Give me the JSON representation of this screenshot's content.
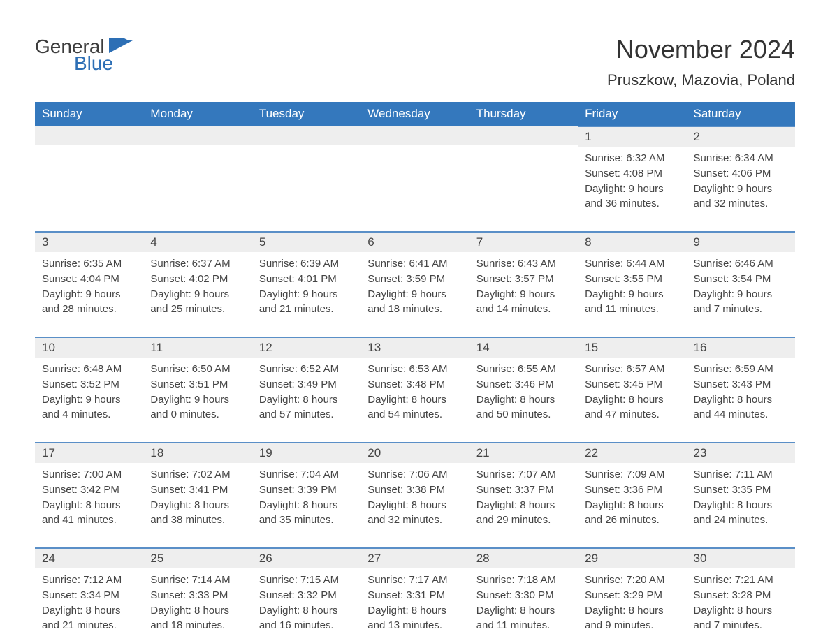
{
  "brand": {
    "general": "General",
    "blue": "Blue",
    "logo_color_general": "#3d3d3d",
    "logo_color_blue": "#2d6fb5",
    "flag_color": "#2d6fb5"
  },
  "header": {
    "month_title": "November 2024",
    "location": "Pruszkow, Mazovia, Poland"
  },
  "theme": {
    "header_bg": "#3478bd",
    "header_text": "#ffffff",
    "day_bar_bg": "#eeeeee",
    "day_bar_border": "#5a8fc7",
    "body_text": "#444444",
    "title_fontsize": 36,
    "location_fontsize": 22,
    "weekday_fontsize": 17,
    "day_number_fontsize": 17,
    "body_fontsize": 15
  },
  "weekdays": [
    "Sunday",
    "Monday",
    "Tuesday",
    "Wednesday",
    "Thursday",
    "Friday",
    "Saturday"
  ],
  "weeks": [
    [
      {
        "empty": true
      },
      {
        "empty": true
      },
      {
        "empty": true
      },
      {
        "empty": true
      },
      {
        "empty": true
      },
      {
        "day": "1",
        "sunrise": "Sunrise: 6:32 AM",
        "sunset": "Sunset: 4:08 PM",
        "daylight1": "Daylight: 9 hours",
        "daylight2": "and 36 minutes."
      },
      {
        "day": "2",
        "sunrise": "Sunrise: 6:34 AM",
        "sunset": "Sunset: 4:06 PM",
        "daylight1": "Daylight: 9 hours",
        "daylight2": "and 32 minutes."
      }
    ],
    [
      {
        "day": "3",
        "sunrise": "Sunrise: 6:35 AM",
        "sunset": "Sunset: 4:04 PM",
        "daylight1": "Daylight: 9 hours",
        "daylight2": "and 28 minutes."
      },
      {
        "day": "4",
        "sunrise": "Sunrise: 6:37 AM",
        "sunset": "Sunset: 4:02 PM",
        "daylight1": "Daylight: 9 hours",
        "daylight2": "and 25 minutes."
      },
      {
        "day": "5",
        "sunrise": "Sunrise: 6:39 AM",
        "sunset": "Sunset: 4:01 PM",
        "daylight1": "Daylight: 9 hours",
        "daylight2": "and 21 minutes."
      },
      {
        "day": "6",
        "sunrise": "Sunrise: 6:41 AM",
        "sunset": "Sunset: 3:59 PM",
        "daylight1": "Daylight: 9 hours",
        "daylight2": "and 18 minutes."
      },
      {
        "day": "7",
        "sunrise": "Sunrise: 6:43 AM",
        "sunset": "Sunset: 3:57 PM",
        "daylight1": "Daylight: 9 hours",
        "daylight2": "and 14 minutes."
      },
      {
        "day": "8",
        "sunrise": "Sunrise: 6:44 AM",
        "sunset": "Sunset: 3:55 PM",
        "daylight1": "Daylight: 9 hours",
        "daylight2": "and 11 minutes."
      },
      {
        "day": "9",
        "sunrise": "Sunrise: 6:46 AM",
        "sunset": "Sunset: 3:54 PM",
        "daylight1": "Daylight: 9 hours",
        "daylight2": "and 7 minutes."
      }
    ],
    [
      {
        "day": "10",
        "sunrise": "Sunrise: 6:48 AM",
        "sunset": "Sunset: 3:52 PM",
        "daylight1": "Daylight: 9 hours",
        "daylight2": "and 4 minutes."
      },
      {
        "day": "11",
        "sunrise": "Sunrise: 6:50 AM",
        "sunset": "Sunset: 3:51 PM",
        "daylight1": "Daylight: 9 hours",
        "daylight2": "and 0 minutes."
      },
      {
        "day": "12",
        "sunrise": "Sunrise: 6:52 AM",
        "sunset": "Sunset: 3:49 PM",
        "daylight1": "Daylight: 8 hours",
        "daylight2": "and 57 minutes."
      },
      {
        "day": "13",
        "sunrise": "Sunrise: 6:53 AM",
        "sunset": "Sunset: 3:48 PM",
        "daylight1": "Daylight: 8 hours",
        "daylight2": "and 54 minutes."
      },
      {
        "day": "14",
        "sunrise": "Sunrise: 6:55 AM",
        "sunset": "Sunset: 3:46 PM",
        "daylight1": "Daylight: 8 hours",
        "daylight2": "and 50 minutes."
      },
      {
        "day": "15",
        "sunrise": "Sunrise: 6:57 AM",
        "sunset": "Sunset: 3:45 PM",
        "daylight1": "Daylight: 8 hours",
        "daylight2": "and 47 minutes."
      },
      {
        "day": "16",
        "sunrise": "Sunrise: 6:59 AM",
        "sunset": "Sunset: 3:43 PM",
        "daylight1": "Daylight: 8 hours",
        "daylight2": "and 44 minutes."
      }
    ],
    [
      {
        "day": "17",
        "sunrise": "Sunrise: 7:00 AM",
        "sunset": "Sunset: 3:42 PM",
        "daylight1": "Daylight: 8 hours",
        "daylight2": "and 41 minutes."
      },
      {
        "day": "18",
        "sunrise": "Sunrise: 7:02 AM",
        "sunset": "Sunset: 3:41 PM",
        "daylight1": "Daylight: 8 hours",
        "daylight2": "and 38 minutes."
      },
      {
        "day": "19",
        "sunrise": "Sunrise: 7:04 AM",
        "sunset": "Sunset: 3:39 PM",
        "daylight1": "Daylight: 8 hours",
        "daylight2": "and 35 minutes."
      },
      {
        "day": "20",
        "sunrise": "Sunrise: 7:06 AM",
        "sunset": "Sunset: 3:38 PM",
        "daylight1": "Daylight: 8 hours",
        "daylight2": "and 32 minutes."
      },
      {
        "day": "21",
        "sunrise": "Sunrise: 7:07 AM",
        "sunset": "Sunset: 3:37 PM",
        "daylight1": "Daylight: 8 hours",
        "daylight2": "and 29 minutes."
      },
      {
        "day": "22",
        "sunrise": "Sunrise: 7:09 AM",
        "sunset": "Sunset: 3:36 PM",
        "daylight1": "Daylight: 8 hours",
        "daylight2": "and 26 minutes."
      },
      {
        "day": "23",
        "sunrise": "Sunrise: 7:11 AM",
        "sunset": "Sunset: 3:35 PM",
        "daylight1": "Daylight: 8 hours",
        "daylight2": "and 24 minutes."
      }
    ],
    [
      {
        "day": "24",
        "sunrise": "Sunrise: 7:12 AM",
        "sunset": "Sunset: 3:34 PM",
        "daylight1": "Daylight: 8 hours",
        "daylight2": "and 21 minutes."
      },
      {
        "day": "25",
        "sunrise": "Sunrise: 7:14 AM",
        "sunset": "Sunset: 3:33 PM",
        "daylight1": "Daylight: 8 hours",
        "daylight2": "and 18 minutes."
      },
      {
        "day": "26",
        "sunrise": "Sunrise: 7:15 AM",
        "sunset": "Sunset: 3:32 PM",
        "daylight1": "Daylight: 8 hours",
        "daylight2": "and 16 minutes."
      },
      {
        "day": "27",
        "sunrise": "Sunrise: 7:17 AM",
        "sunset": "Sunset: 3:31 PM",
        "daylight1": "Daylight: 8 hours",
        "daylight2": "and 13 minutes."
      },
      {
        "day": "28",
        "sunrise": "Sunrise: 7:18 AM",
        "sunset": "Sunset: 3:30 PM",
        "daylight1": "Daylight: 8 hours",
        "daylight2": "and 11 minutes."
      },
      {
        "day": "29",
        "sunrise": "Sunrise: 7:20 AM",
        "sunset": "Sunset: 3:29 PM",
        "daylight1": "Daylight: 8 hours",
        "daylight2": "and 9 minutes."
      },
      {
        "day": "30",
        "sunrise": "Sunrise: 7:21 AM",
        "sunset": "Sunset: 3:28 PM",
        "daylight1": "Daylight: 8 hours",
        "daylight2": "and 7 minutes."
      }
    ]
  ]
}
